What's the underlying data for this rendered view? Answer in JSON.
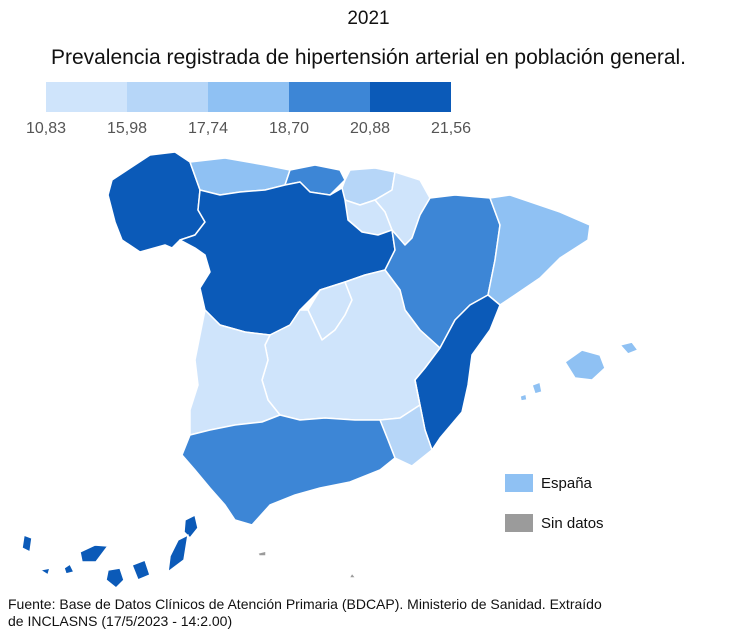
{
  "title": {
    "year": "2021",
    "main": "Prevalencia registrada de hipertensión arterial en población general."
  },
  "legend": {
    "labels": [
      "10,83",
      "15,98",
      "17,74",
      "18,70",
      "20,88",
      "21,56"
    ],
    "colors": [
      "#cfe4fb",
      "#b6d6f8",
      "#8fc1f3",
      "#3d86d6",
      "#0b5ab8"
    ]
  },
  "key": {
    "spain": {
      "label": "España",
      "color": "#8fc1f3"
    },
    "no_data": {
      "label": "Sin datos",
      "color": "#9b9b9b"
    }
  },
  "regions": [
    {
      "name": "Galicia",
      "bin": 4
    },
    {
      "name": "Asturias",
      "bin": 2
    },
    {
      "name": "Cantabria",
      "bin": 3
    },
    {
      "name": "País Vasco",
      "bin": 1
    },
    {
      "name": "Navarra",
      "bin": 0
    },
    {
      "name": "La Rioja",
      "bin": 0
    },
    {
      "name": "Castilla y León",
      "bin": 4
    },
    {
      "name": "Aragón",
      "bin": 3
    },
    {
      "name": "Cataluña",
      "bin": 2
    },
    {
      "name": "Madrid",
      "bin": 0
    },
    {
      "name": "Castilla-La Mancha",
      "bin": 0
    },
    {
      "name": "Extremadura",
      "bin": 0
    },
    {
      "name": "Comunitat Valenciana",
      "bin": 4
    },
    {
      "name": "Illes Balears",
      "bin": 2
    },
    {
      "name": "Región de Murcia",
      "bin": 1
    },
    {
      "name": "Andalucía",
      "bin": 3
    },
    {
      "name": "Canarias",
      "bin": 4
    },
    {
      "name": "Ceuta",
      "bin": 5
    },
    {
      "name": "Melilla",
      "bin": 5
    }
  ],
  "source": "Fuente: Base de Datos Clínicos de Atención Primaria (BDCAP). Ministerio de Sanidad. Extraído de INCLASNS (17/5/2023 - 14:2.00)"
}
